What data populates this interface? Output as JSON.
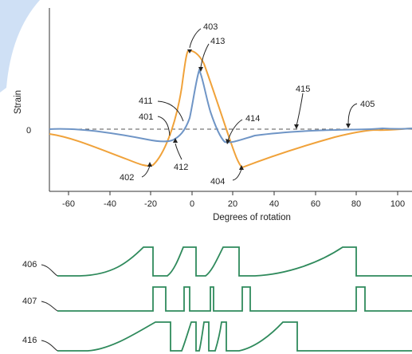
{
  "top_chart": {
    "ylabel": "Strain",
    "xlabel": "Degrees of rotation",
    "zero_label": "0",
    "x_ticks": [
      "-60",
      "-40",
      "-20",
      "0",
      "20",
      "40",
      "60",
      "80",
      "100"
    ],
    "colors": {
      "orange": "#f0a23a",
      "blue": "#6f95c6",
      "axis": "#333333",
      "dash": "#555555"
    }
  },
  "callouts": {
    "c401": "401",
    "c402": "402",
    "c403": "403",
    "c404": "404",
    "c405": "405",
    "c411": "411",
    "c412": "412",
    "c413": "413",
    "c414": "414",
    "c415": "415"
  },
  "bottom_traces": {
    "labels": [
      "406",
      "407",
      "416"
    ],
    "color": "#2f8a5c"
  },
  "decor": {
    "accent_color": "#cfe0f5"
  }
}
